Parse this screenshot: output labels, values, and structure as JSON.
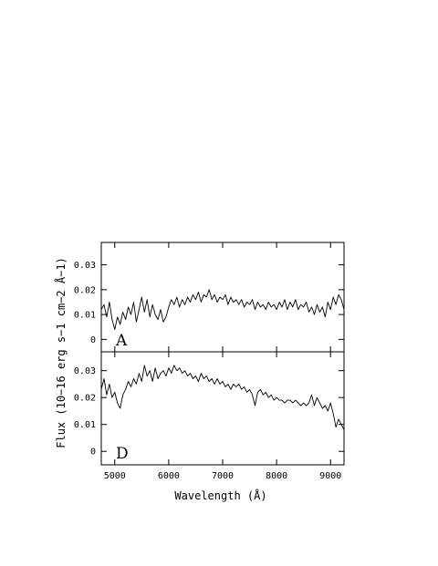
{
  "chart_data": [
    {
      "type": "line",
      "panel_label": "A",
      "xlabel": "Wavelength (Å)",
      "ylabel": "Flux (10−16 erg s−1 cm−2 Å−1)",
      "xlim": [
        4750,
        9250
      ],
      "ylim": [
        -0.005,
        0.039
      ],
      "xticks": [
        5000,
        6000,
        7000,
        8000,
        9000
      ],
      "xtick_labels": [
        "5000",
        "6000",
        "7000",
        "8000",
        "9000"
      ],
      "yticks": [
        0,
        0.01,
        0.02,
        0.03
      ],
      "ytick_labels": [
        "0",
        "0.01",
        "0.02",
        "0.03"
      ],
      "grid": false,
      "series": [
        {
          "x": [
            4750,
            4800,
            4850,
            4900,
            4950,
            5000,
            5050,
            5100,
            5150,
            5200,
            5250,
            5300,
            5350,
            5400,
            5450,
            5500,
            5550,
            5600,
            5650,
            5700,
            5750,
            5800,
            5850,
            5900,
            5950,
            6000,
            6050,
            6100,
            6150,
            6200,
            6250,
            6300,
            6350,
            6400,
            6450,
            6500,
            6550,
            6600,
            6650,
            6700,
            6750,
            6800,
            6850,
            6900,
            6950,
            7000,
            7050,
            7100,
            7150,
            7200,
            7250,
            7300,
            7350,
            7400,
            7450,
            7500,
            7550,
            7600,
            7650,
            7700,
            7750,
            7800,
            7850,
            7900,
            7950,
            8000,
            8050,
            8100,
            8150,
            8200,
            8250,
            8300,
            8350,
            8400,
            8450,
            8500,
            8550,
            8600,
            8650,
            8700,
            8750,
            8800,
            8850,
            8900,
            8950,
            9000,
            9050,
            9100,
            9150,
            9200,
            9250
          ],
          "y": [
            0.012,
            0.014,
            0.009,
            0.015,
            0.008,
            0.004,
            0.009,
            0.006,
            0.011,
            0.008,
            0.013,
            0.01,
            0.015,
            0.007,
            0.012,
            0.017,
            0.011,
            0.016,
            0.009,
            0.014,
            0.01,
            0.008,
            0.012,
            0.007,
            0.009,
            0.013,
            0.016,
            0.014,
            0.017,
            0.013,
            0.016,
            0.014,
            0.017,
            0.015,
            0.018,
            0.016,
            0.019,
            0.015,
            0.018,
            0.017,
            0.02,
            0.016,
            0.018,
            0.015,
            0.017,
            0.016,
            0.018,
            0.014,
            0.017,
            0.015,
            0.016,
            0.014,
            0.016,
            0.013,
            0.015,
            0.014,
            0.016,
            0.012,
            0.015,
            0.013,
            0.014,
            0.012,
            0.015,
            0.013,
            0.014,
            0.012,
            0.015,
            0.013,
            0.016,
            0.012,
            0.015,
            0.013,
            0.016,
            0.012,
            0.014,
            0.013,
            0.015,
            0.011,
            0.013,
            0.01,
            0.014,
            0.011,
            0.013,
            0.009,
            0.015,
            0.012,
            0.017,
            0.014,
            0.018,
            0.016,
            0.012
          ]
        }
      ]
    },
    {
      "type": "line",
      "panel_label": "D",
      "xlabel": "Wavelength (Å)",
      "ylabel": "Flux (10−16 erg s−1 cm−2 Å−1)",
      "xlim": [
        4750,
        9250
      ],
      "ylim": [
        -0.005,
        0.037
      ],
      "xticks": [
        5000,
        6000,
        7000,
        8000,
        9000
      ],
      "xtick_labels": [
        "5000",
        "6000",
        "7000",
        "8000",
        "9000"
      ],
      "yticks": [
        0,
        0.01,
        0.02,
        0.03
      ],
      "ytick_labels": [
        "0",
        "0.01",
        "0.02",
        "0.03"
      ],
      "grid": false,
      "series": [
        {
          "x": [
            4750,
            4800,
            4850,
            4900,
            4950,
            5000,
            5050,
            5100,
            5150,
            5200,
            5250,
            5300,
            5350,
            5400,
            5450,
            5500,
            5550,
            5600,
            5650,
            5700,
            5750,
            5800,
            5850,
            5900,
            5950,
            6000,
            6050,
            6100,
            6150,
            6200,
            6250,
            6300,
            6350,
            6400,
            6450,
            6500,
            6550,
            6600,
            6650,
            6700,
            6750,
            6800,
            6850,
            6900,
            6950,
            7000,
            7050,
            7100,
            7150,
            7200,
            7250,
            7300,
            7350,
            7400,
            7450,
            7500,
            7550,
            7600,
            7650,
            7700,
            7750,
            7800,
            7850,
            7900,
            7950,
            8000,
            8050,
            8100,
            8150,
            8200,
            8250,
            8300,
            8350,
            8400,
            8450,
            8500,
            8550,
            8600,
            8650,
            8700,
            8750,
            8800,
            8850,
            8900,
            8950,
            9000,
            9050,
            9100,
            9150,
            9200,
            9250
          ],
          "y": [
            0.023,
            0.027,
            0.021,
            0.025,
            0.02,
            0.022,
            0.018,
            0.016,
            0.021,
            0.023,
            0.026,
            0.024,
            0.027,
            0.025,
            0.029,
            0.026,
            0.032,
            0.028,
            0.03,
            0.026,
            0.031,
            0.027,
            0.029,
            0.03,
            0.028,
            0.031,
            0.029,
            0.032,
            0.03,
            0.031,
            0.029,
            0.03,
            0.028,
            0.029,
            0.027,
            0.028,
            0.026,
            0.029,
            0.027,
            0.028,
            0.026,
            0.027,
            0.025,
            0.027,
            0.025,
            0.026,
            0.024,
            0.025,
            0.023,
            0.025,
            0.024,
            0.025,
            0.023,
            0.024,
            0.022,
            0.023,
            0.021,
            0.017,
            0.022,
            0.023,
            0.021,
            0.022,
            0.02,
            0.021,
            0.019,
            0.02,
            0.019,
            0.019,
            0.018,
            0.019,
            0.019,
            0.018,
            0.019,
            0.018,
            0.017,
            0.018,
            0.017,
            0.018,
            0.021,
            0.017,
            0.02,
            0.018,
            0.016,
            0.017,
            0.015,
            0.018,
            0.014,
            0.009,
            0.012,
            0.01,
            0.008
          ]
        }
      ]
    }
  ]
}
